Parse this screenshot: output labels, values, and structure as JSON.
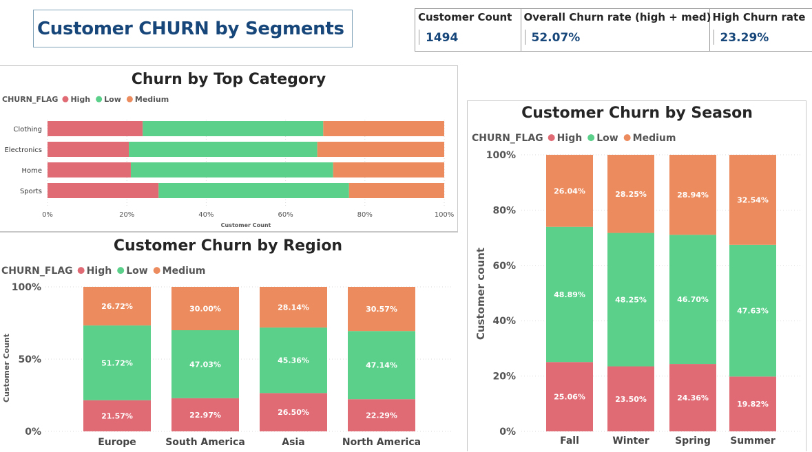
{
  "header": {
    "title": "Customer CHURN by Segments",
    "kpis": [
      {
        "label": "Customer Count",
        "value": "1494"
      },
      {
        "label": "Overall Churn rate (high + med)",
        "value": "52.07%"
      },
      {
        "label": "High Churn rate",
        "value": "23.29%"
      }
    ]
  },
  "colors": {
    "High": "#e06b75",
    "Low": "#5ad08a",
    "Medium": "#ec8c5e"
  },
  "chart_data": [
    {
      "id": "category",
      "type": "bar",
      "orientation": "horizontal",
      "stacked": "percent",
      "title": "Churn by Top Category",
      "legend_title": "CHURN_FLAG",
      "legend_position": "top-left",
      "categories": [
        "Clothing",
        "Electronics",
        "Home",
        "Sports"
      ],
      "series": [
        {
          "name": "High",
          "values": [
            24,
            20.5,
            21,
            28
          ]
        },
        {
          "name": "Low",
          "values": [
            45.5,
            47.5,
            51,
            48
          ]
        },
        {
          "name": "Medium",
          "values": [
            30.5,
            32,
            28,
            24
          ]
        }
      ],
      "xlabel": "Customer Count",
      "ylabel": "",
      "xlim": [
        0,
        100
      ],
      "ticks": [
        "0%",
        "20%",
        "40%",
        "60%",
        "80%",
        "100%"
      ],
      "tick_values": [
        0,
        20,
        40,
        60,
        80,
        100
      ],
      "grid": true
    },
    {
      "id": "region",
      "type": "bar",
      "orientation": "vertical",
      "stacked": "percent",
      "title": "Customer Churn by Region",
      "legend_title": "CHURN_FLAG",
      "legend_position": "top-left",
      "categories": [
        "Europe",
        "South America",
        "Asia",
        "North America"
      ],
      "series": [
        {
          "name": "High",
          "values": [
            21.57,
            22.97,
            26.5,
            22.29
          ],
          "labels": [
            "21.57%",
            "22.97%",
            "26.50%",
            "22.29%"
          ]
        },
        {
          "name": "Low",
          "values": [
            51.72,
            47.03,
            45.36,
            47.14
          ],
          "labels": [
            "51.72%",
            "47.03%",
            "45.36%",
            "47.14%"
          ]
        },
        {
          "name": "Medium",
          "values": [
            26.72,
            30.0,
            28.14,
            30.57
          ],
          "labels": [
            "26.72%",
            "30.00%",
            "28.14%",
            "30.57%"
          ]
        }
      ],
      "xlabel": "",
      "ylabel": "Customer Count",
      "ylim": [
        0,
        100
      ],
      "ticks": [
        "0%",
        "50%",
        "100%"
      ],
      "tick_values": [
        0,
        50,
        100
      ],
      "grid": true
    },
    {
      "id": "season",
      "type": "bar",
      "orientation": "vertical",
      "stacked": "percent",
      "title": "Customer Churn by Season",
      "legend_title": "CHURN_FLAG",
      "legend_position": "top-left",
      "categories": [
        "Fall",
        "Winter",
        "Spring",
        "Summer"
      ],
      "series": [
        {
          "name": "High",
          "values": [
            25.06,
            23.5,
            24.36,
            19.82
          ],
          "labels": [
            "25.06%",
            "23.50%",
            "24.36%",
            "19.82%"
          ]
        },
        {
          "name": "Low",
          "values": [
            48.89,
            48.25,
            46.7,
            47.63
          ],
          "labels": [
            "48.89%",
            "48.25%",
            "46.70%",
            "47.63%"
          ]
        },
        {
          "name": "Medium",
          "values": [
            26.04,
            28.25,
            28.94,
            32.54
          ],
          "labels": [
            "26.04%",
            "28.25%",
            "28.94%",
            "32.54%"
          ]
        }
      ],
      "xlabel": "",
      "ylabel": "Customer count",
      "ylim": [
        0,
        100
      ],
      "ticks": [
        "0%",
        "20%",
        "40%",
        "60%",
        "80%",
        "100%"
      ],
      "tick_values": [
        0,
        20,
        40,
        60,
        80,
        100
      ],
      "grid": true
    }
  ]
}
